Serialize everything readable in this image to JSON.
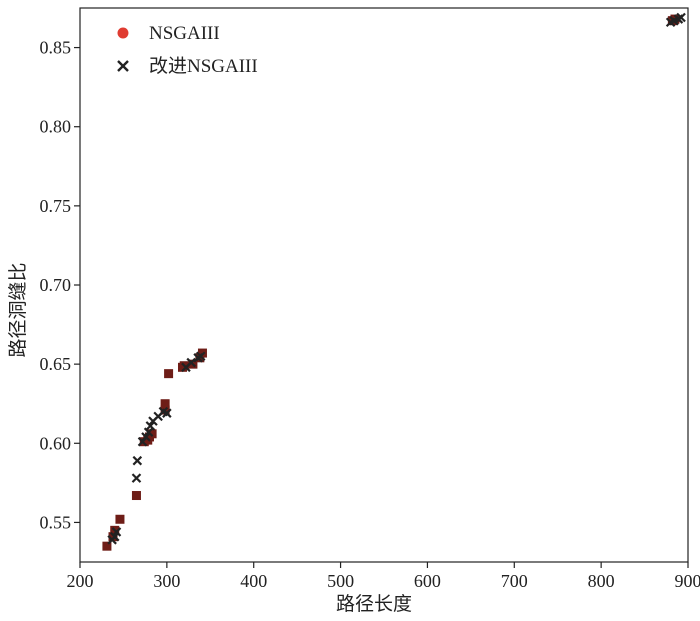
{
  "chart_data": {
    "type": "scatter",
    "title": "",
    "xlabel": "路径长度",
    "ylabel": "路径洞缝比",
    "xlim": [
      200,
      900
    ],
    "ylim": [
      0.525,
      0.875
    ],
    "xticks": [
      200,
      300,
      400,
      500,
      600,
      700,
      800,
      900
    ],
    "yticks": [
      0.55,
      0.6,
      0.65,
      0.7,
      0.75,
      0.8,
      0.85
    ],
    "xtick_labels": [
      "200",
      "300",
      "400",
      "500",
      "600",
      "700",
      "800",
      "900"
    ],
    "ytick_labels": [
      "0.55",
      "0.60",
      "0.65",
      "0.70",
      "0.75",
      "0.80",
      "0.85"
    ],
    "grid": false,
    "legend_position": "top-left",
    "legend": [
      {
        "label": "NSGAIII",
        "marker": "circle",
        "color": "#e03c31"
      },
      {
        "label": "改进NSGAIII",
        "marker": "x",
        "color": "#222222"
      }
    ],
    "series": [
      {
        "name": "NSGAIII",
        "marker": "square",
        "color": "#6e1d17",
        "x": [
          231,
          238,
          240,
          246,
          265,
          274,
          278,
          280,
          283,
          298,
          298,
          302,
          318,
          320,
          330,
          338,
          341,
          882,
          885
        ],
        "y": [
          0.535,
          0.541,
          0.545,
          0.552,
          0.567,
          0.601,
          0.602,
          0.604,
          0.606,
          0.621,
          0.625,
          0.644,
          0.648,
          0.649,
          0.65,
          0.654,
          0.657,
          0.867,
          0.868
        ]
      },
      {
        "name": "改进NSGAIII",
        "marker": "x",
        "color": "#222222",
        "x": [
          237,
          240,
          242,
          265,
          266,
          272,
          276,
          279,
          281,
          284,
          290,
          296,
          300,
          322,
          328,
          336,
          339,
          880,
          884,
          889,
          892
        ],
        "y": [
          0.539,
          0.541,
          0.544,
          0.578,
          0.589,
          0.601,
          0.604,
          0.607,
          0.611,
          0.614,
          0.617,
          0.62,
          0.619,
          0.648,
          0.651,
          0.654,
          0.655,
          0.866,
          0.867,
          0.868,
          0.869
        ]
      }
    ]
  }
}
